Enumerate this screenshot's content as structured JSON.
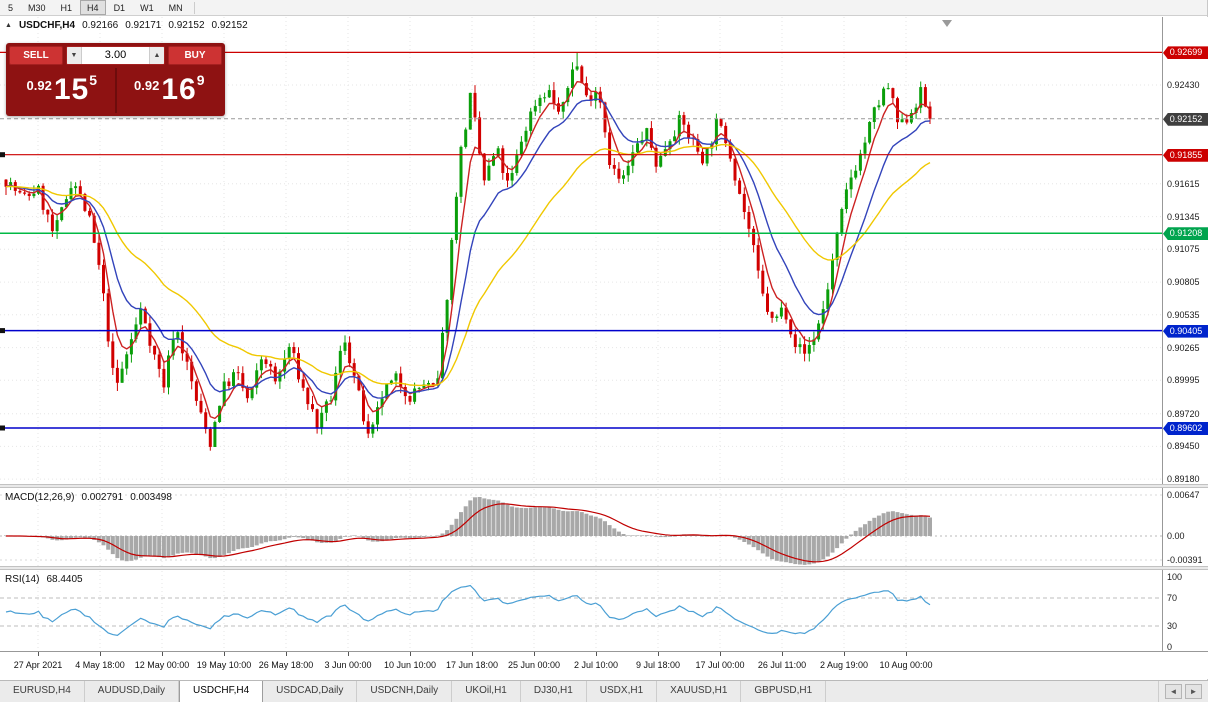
{
  "toolbar": {
    "timeframes": [
      "5",
      "M30",
      "H1",
      "H4",
      "D1",
      "W1",
      "MN"
    ],
    "active": "H4"
  },
  "chart": {
    "title": {
      "symbol": "USDCHF,H4",
      "open": "0.92166",
      "high": "0.92171",
      "low": "0.92152",
      "close": "0.92152"
    },
    "trade_panel": {
      "sell_label": "SELL",
      "buy_label": "BUY",
      "volume": "3.00",
      "sell_price": {
        "big": "0.92",
        "pips": "15",
        "sup": "5"
      },
      "buy_price": {
        "big": "0.92",
        "pips": "16",
        "sup": "9"
      }
    },
    "price_axis_labels": [
      "0.92430",
      "0.91615",
      "0.91345",
      "0.91075",
      "0.90805",
      "0.90535",
      "0.90265",
      "0.89995",
      "0.89720",
      "0.89450",
      "0.89180"
    ],
    "current_price": {
      "label": "0.92152",
      "value": 0.92152
    }
  },
  "macd_panel": {
    "name": "MACD(12,26,9)",
    "value1": "0.002791",
    "value2": "0.003498",
    "axis_labels": [
      "0.00647",
      "0.00",
      "-0.00391"
    ]
  },
  "rsi_panel": {
    "name": "RSI(14)",
    "value": "68.4405",
    "axis_labels": [
      "100",
      "70",
      "30",
      "0"
    ],
    "levels": [
      70,
      30
    ]
  },
  "time_axis": [
    "27 Apr 2021",
    "4 May 18:00",
    "12 May 00:00",
    "19 May 10:00",
    "26 May 18:00",
    "3 Jun 00:00",
    "10 Jun 10:00",
    "17 Jun 18:00",
    "25 Jun 00:00",
    "2 Jul 10:00",
    "9 Jul 18:00",
    "17 Jul 00:00",
    "26 Jul 11:00",
    "2 Aug 19:00",
    "10 Aug 00:00"
  ],
  "tabbar": {
    "tabs": [
      "EURUSD,H4",
      "AUDUSD,Daily",
      "USDCHF,H4",
      "USDCAD,Daily",
      "USDCNH,Daily",
      "UKOil,H1",
      "DJ30,H1",
      "USDX,H1",
      "XAUUSD,H1",
      "GBPUSD,H1"
    ],
    "active": "USDCHF,H4",
    "scroll_left": "◄",
    "scroll_right": "►"
  },
  "colors": {
    "bull": "#0a9e0a",
    "bear": "#d10000",
    "ma_fast": "#cc2222",
    "ma_mid": "#3344bb",
    "ma_slow": "#f0c800",
    "line_red": "#cc0000",
    "line_green": "#00b944",
    "line_blue": "#0000cc",
    "badge_red": "#cc0000",
    "badge_green": "#00a44e",
    "badge_blue": "#0024cc",
    "badge_current": "#3f3f3f",
    "macd_hist": "#a8a8a8",
    "macd_signal": "#c00000",
    "rsi_line": "#4a9fd4"
  },
  "chart_data": {
    "type": "candlestick",
    "symbol": "USDCHF",
    "timeframe": "H4",
    "price_top": 0.929,
    "price_bottom": 0.8914,
    "num_candles": 200,
    "last_close": 0.92152,
    "forced_high": 0.92699,
    "waypoints": [
      [
        0.0,
        0.9165
      ],
      [
        0.018,
        0.9149
      ],
      [
        0.034,
        0.9158
      ],
      [
        0.052,
        0.9118
      ],
      [
        0.072,
        0.9167
      ],
      [
        0.09,
        0.9132
      ],
      [
        0.103,
        0.9083
      ],
      [
        0.118,
        0.899
      ],
      [
        0.132,
        0.9024
      ],
      [
        0.147,
        0.906
      ],
      [
        0.16,
        0.9021
      ],
      [
        0.171,
        0.8996
      ],
      [
        0.183,
        0.9046
      ],
      [
        0.196,
        0.9012
      ],
      [
        0.209,
        0.8974
      ],
      [
        0.221,
        0.8948
      ],
      [
        0.234,
        0.8992
      ],
      [
        0.249,
        0.9006
      ],
      [
        0.263,
        0.8981
      ],
      [
        0.278,
        0.9022
      ],
      [
        0.292,
        0.8997
      ],
      [
        0.307,
        0.9028
      ],
      [
        0.322,
        0.8991
      ],
      [
        0.338,
        0.8961
      ],
      [
        0.352,
        0.8986
      ],
      [
        0.366,
        0.9036
      ],
      [
        0.379,
        0.8996
      ],
      [
        0.393,
        0.8947
      ],
      [
        0.408,
        0.8989
      ],
      [
        0.423,
        0.9001
      ],
      [
        0.438,
        0.8986
      ],
      [
        0.452,
        0.8997
      ],
      [
        0.466,
        0.8989
      ],
      [
        0.478,
        0.9075
      ],
      [
        0.49,
        0.9178
      ],
      [
        0.503,
        0.9234
      ],
      [
        0.517,
        0.9163
      ],
      [
        0.531,
        0.919
      ],
      [
        0.544,
        0.9157
      ],
      [
        0.558,
        0.9198
      ],
      [
        0.572,
        0.9228
      ],
      [
        0.586,
        0.924
      ],
      [
        0.601,
        0.9216
      ],
      [
        0.615,
        0.9266
      ],
      [
        0.628,
        0.9232
      ],
      [
        0.641,
        0.9242
      ],
      [
        0.654,
        0.9178
      ],
      [
        0.666,
        0.9161
      ],
      [
        0.679,
        0.9186
      ],
      [
        0.692,
        0.9206
      ],
      [
        0.705,
        0.9176
      ],
      [
        0.717,
        0.9199
      ],
      [
        0.73,
        0.9214
      ],
      [
        0.743,
        0.9196
      ],
      [
        0.756,
        0.9181
      ],
      [
        0.769,
        0.9211
      ],
      [
        0.781,
        0.9196
      ],
      [
        0.793,
        0.9157
      ],
      [
        0.805,
        0.9121
      ],
      [
        0.818,
        0.9071
      ],
      [
        0.83,
        0.9046
      ],
      [
        0.842,
        0.9061
      ],
      [
        0.854,
        0.9031
      ],
      [
        0.864,
        0.9021
      ],
      [
        0.875,
        0.9036
      ],
      [
        0.886,
        0.9062
      ],
      [
        0.898,
        0.9112
      ],
      [
        0.912,
        0.9163
      ],
      [
        0.926,
        0.9188
      ],
      [
        0.94,
        0.9221
      ],
      [
        0.954,
        0.9243
      ],
      [
        0.967,
        0.9206
      ],
      [
        0.979,
        0.9221
      ],
      [
        0.99,
        0.9236
      ],
      [
        1.0,
        0.92152
      ]
    ],
    "hlines": [
      {
        "price": 0.92699,
        "label": "0.92699",
        "color": "red",
        "type": "resistance",
        "handles": false
      },
      {
        "price": 0.91855,
        "label": "0.91855",
        "color": "red",
        "type": "resistance",
        "handles": true
      },
      {
        "price": 0.91208,
        "label": "0.91208",
        "color": "green",
        "type": "level",
        "handles": false
      },
      {
        "price": 0.90405,
        "label": "0.90405",
        "color": "blue",
        "type": "support",
        "handles": true
      },
      {
        "price": 0.89602,
        "label": "0.89602",
        "color": "blue",
        "type": "support",
        "handles": true
      }
    ],
    "moving_averages": [
      {
        "period": 5,
        "color": "red"
      },
      {
        "period": 13,
        "color": "blue"
      },
      {
        "period": 34,
        "color": "yellow"
      }
    ],
    "indicators": [
      {
        "type": "MACD",
        "params": [
          12,
          26,
          9
        ],
        "values": [
          0.002791,
          0.003498
        ]
      },
      {
        "type": "RSI",
        "params": [
          14
        ],
        "value": 68.4405
      }
    ]
  }
}
